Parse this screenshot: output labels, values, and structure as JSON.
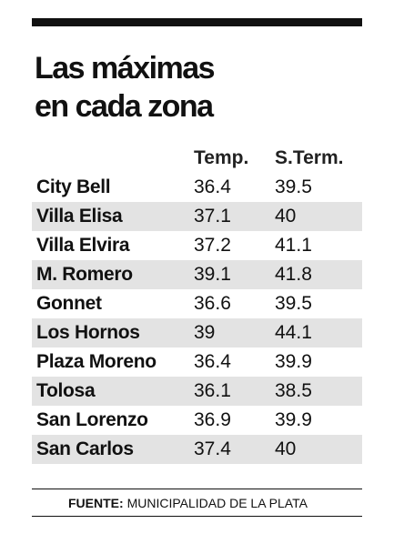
{
  "header": {
    "title_lines": [
      "Las máximas",
      "en cada zona"
    ]
  },
  "table": {
    "columns": [
      "Temp.",
      "S.Term."
    ],
    "rows": [
      [
        "City Bell",
        36.4,
        39.5
      ],
      [
        "Villa Elisa",
        37.1,
        40
      ],
      [
        "Villa Elvira",
        37.2,
        41.1
      ],
      [
        "M. Romero",
        39.1,
        41.8
      ],
      [
        "Gonnet",
        36.6,
        39.5
      ],
      [
        "Los Hornos",
        39,
        44.1
      ],
      [
        "Plaza Moreno",
        36.4,
        39.9
      ],
      [
        "Tolosa",
        36.1,
        38.5
      ],
      [
        "San Lorenzo",
        36.9,
        39.9
      ],
      [
        "San Carlos",
        37.4,
        40
      ]
    ]
  },
  "footer": {
    "label": "FUENTE:",
    "source": "MUNICIPALIDAD DE LA PLATA"
  }
}
